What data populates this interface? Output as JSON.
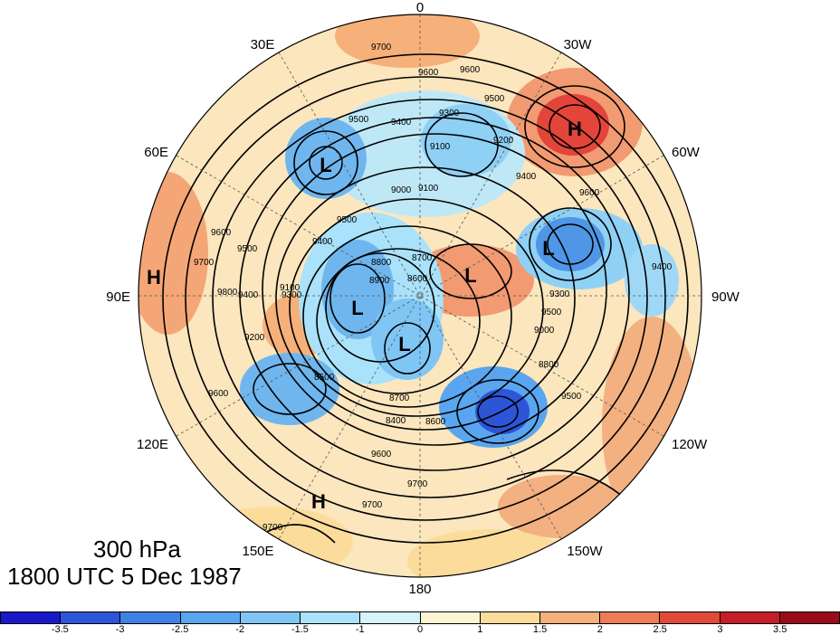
{
  "map": {
    "level_label": "300 hPa",
    "time_label": "1800 UTC 5 Dec 1987",
    "longitude_labels": {
      "top": "0",
      "top_right": "30W",
      "right_upper": "60W",
      "right": "90W",
      "right_lower": "120W",
      "bottom_right": "150W",
      "bottom": "180",
      "bottom_left": "150E",
      "left_lower": "120E",
      "left": "90E",
      "left_upper": "60E",
      "top_left": "30E"
    },
    "pressure_centers": [
      {
        "label": "H",
        "name": "high-north-atlantic"
      },
      {
        "label": "H",
        "name": "high-central-asia"
      },
      {
        "label": "H",
        "name": "high-north-pacific"
      },
      {
        "label": "L",
        "name": "low-scandinavia"
      },
      {
        "label": "L",
        "name": "low-hudson-bay"
      },
      {
        "label": "L",
        "name": "low-arctic-north-america"
      },
      {
        "label": "L",
        "name": "low-siberia"
      },
      {
        "label": "L",
        "name": "low-east-siberia"
      }
    ],
    "contour_labels": [
      "9700",
      "9600",
      "9600",
      "9500",
      "9500",
      "9300",
      "9400",
      "9100",
      "9200",
      "9100",
      "9000",
      "9400",
      "9600",
      "9500",
      "9400",
      "9700",
      "9800",
      "9600",
      "9500",
      "9400",
      "9300",
      "9200",
      "9100",
      "8900",
      "8800",
      "8700",
      "8600",
      "8500",
      "8400",
      "8600",
      "8700",
      "8800",
      "9000",
      "9300",
      "9400",
      "9500",
      "9600",
      "9700",
      "9700",
      "9500",
      "9700",
      "9600"
    ],
    "colorbar": {
      "ticks": [
        "-3.5",
        "-3",
        "-2.5",
        "-2",
        "-1.5",
        "-1",
        "0",
        "1",
        "1.5",
        "2",
        "2.5",
        "3",
        "3.5"
      ],
      "colors": [
        "#1919c8",
        "#2d55d8",
        "#3f82e6",
        "#5aa5ef",
        "#7fc6f5",
        "#a9e2fa",
        "#d6f3fb",
        "#fdf5d2",
        "#fbdc9a",
        "#f6b07a",
        "#ee7c55",
        "#e04a3b",
        "#c41e28",
        "#9a0c1a"
      ]
    }
  }
}
